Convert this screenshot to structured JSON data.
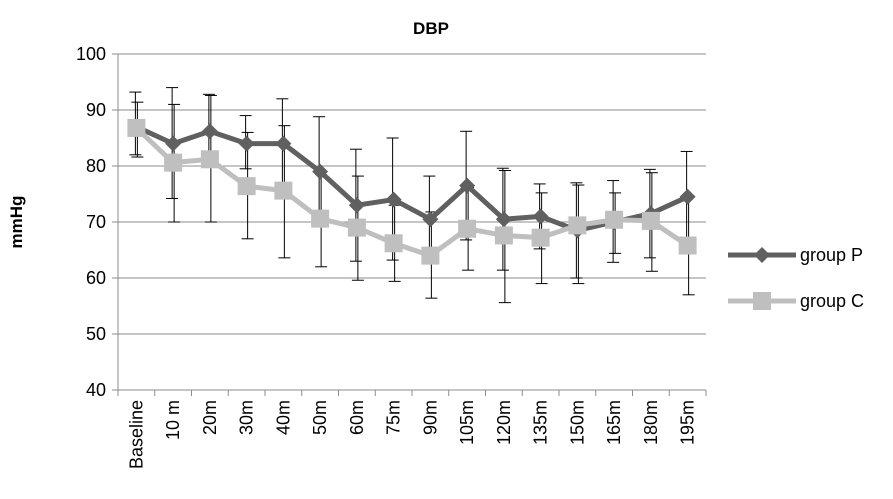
{
  "chart_data": {
    "type": "line",
    "title": "DBP",
    "xlabel": "",
    "ylabel": "mmHg",
    "ylim": [
      40,
      100
    ],
    "yticks": [
      40,
      50,
      60,
      70,
      80,
      90,
      100
    ],
    "grid": "horizontal",
    "legend_position": "right",
    "categories": [
      "Baseline",
      "10 m",
      "20m",
      "30m",
      "40m",
      "50m",
      "60m",
      "75m",
      "90m",
      "105m",
      "120m",
      "135m",
      "150m",
      "165m",
      "180m",
      "195m"
    ],
    "series": [
      {
        "name": "group P",
        "color": "#606060",
        "marker": "diamond",
        "values": [
          87,
          84,
          86.2,
          84,
          84,
          79,
          73,
          74,
          70.5,
          76.5,
          70.5,
          71,
          68.5,
          70,
          71.5,
          74.5
        ],
        "error_upper": [
          93.2,
          94,
          92.8,
          89,
          92,
          88.8,
          83,
          85,
          78.2,
          86.2,
          79.6,
          76.8,
          77,
          77.4,
          79.4,
          82.6
        ],
        "error_lower": [
          82,
          74.2,
          79.8,
          79.5,
          76.8,
          69.2,
          63,
          63.2,
          62.8,
          66.8,
          61.4,
          65.2,
          60,
          62.8,
          63.6,
          66.6
        ]
      },
      {
        "name": "group C",
        "color": "#bfbfbf",
        "marker": "square",
        "values": [
          86.8,
          80.6,
          81.2,
          76.4,
          75.6,
          70.6,
          69,
          66.2,
          64,
          68.8,
          67.6,
          67.2,
          69.4,
          70.4,
          70.2,
          65.8
        ],
        "error_upper": [
          91.4,
          91,
          92.6,
          86,
          87.2,
          79,
          78.2,
          73,
          71.8,
          76.2,
          79.2,
          75.2,
          76.6,
          75.2,
          78.8,
          74.6
        ],
        "error_lower": [
          81.6,
          70,
          70,
          67,
          63.6,
          62,
          59.6,
          59.4,
          56.4,
          61.4,
          55.6,
          59,
          59,
          64.4,
          61.2,
          57
        ]
      }
    ]
  }
}
